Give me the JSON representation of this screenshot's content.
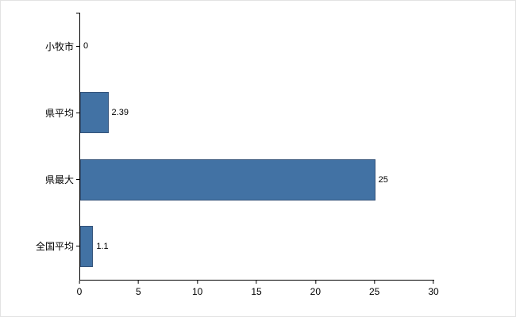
{
  "chart_data": {
    "type": "bar",
    "orientation": "horizontal",
    "title": "",
    "xlabel": "",
    "ylabel": "",
    "categories": [
      "小牧市",
      "県平均",
      "県最大",
      "全国平均"
    ],
    "values": [
      0,
      2.39,
      25,
      1.1
    ],
    "value_labels": [
      "0",
      "2.39",
      "25",
      "1.1"
    ],
    "xlim": [
      0,
      30
    ],
    "xticks": [
      0,
      5,
      10,
      15,
      20,
      25,
      30
    ],
    "grid": false,
    "legend": false,
    "bar_color": "#4272a4",
    "bar_border_color": "#34537a",
    "axis_color": "#000000",
    "background_color": "#ffffff"
  }
}
